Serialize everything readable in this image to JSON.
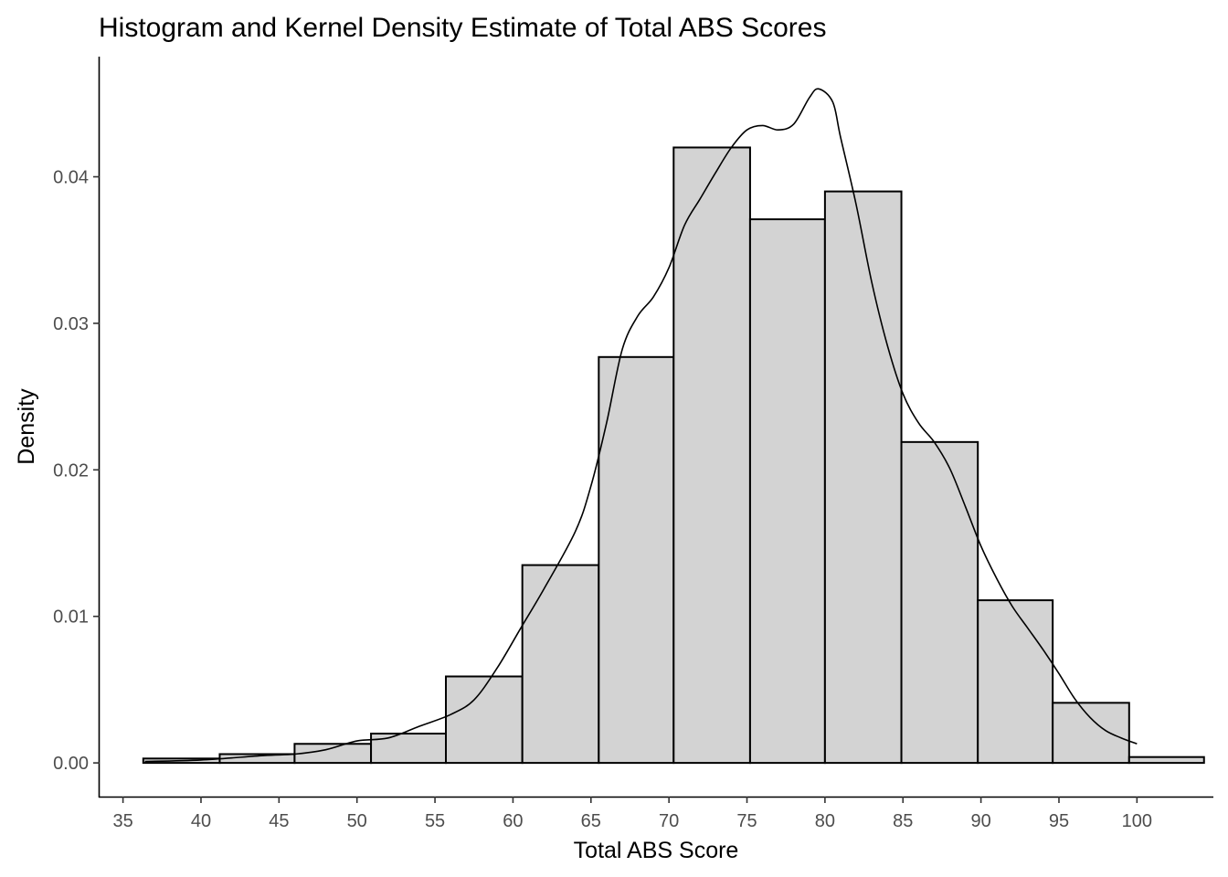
{
  "chart_data": {
    "type": "bar",
    "title": "Histogram and Kernel Density Estimate of Total ABS Scores",
    "xlabel": "Total ABS Score",
    "ylabel": "Density",
    "xlim": [
      33.5,
      104.9
    ],
    "ylim": [
      -0.0023,
      0.0482
    ],
    "x_ticks": [
      35,
      40,
      45,
      50,
      55,
      60,
      65,
      70,
      75,
      80,
      85,
      90,
      95,
      100
    ],
    "x_tick_labels": [
      "35",
      "40",
      "45",
      "50",
      "55",
      "60",
      "65",
      "70",
      "75",
      "80",
      "85",
      "90",
      "95",
      "100"
    ],
    "y_ticks": [
      0,
      0.01,
      0.02,
      0.03,
      0.04
    ],
    "y_tick_labels": [
      "0.00",
      "0.01",
      "0.02",
      "0.03",
      "0.04"
    ],
    "grid": false,
    "colors": {
      "bar_fill": "#d3d3d3",
      "bar_outline": "#000000",
      "density_line": "#000000"
    },
    "histogram": {
      "bins": [
        {
          "x0": 36.3,
          "x1": 41.2,
          "density": 0.0003
        },
        {
          "x0": 41.2,
          "x1": 46.0,
          "density": 0.0006
        },
        {
          "x0": 46.0,
          "x1": 50.9,
          "density": 0.0013
        },
        {
          "x0": 50.9,
          "x1": 55.7,
          "density": 0.002
        },
        {
          "x0": 55.7,
          "x1": 60.6,
          "density": 0.0059
        },
        {
          "x0": 60.6,
          "x1": 65.5,
          "density": 0.0135
        },
        {
          "x0": 65.5,
          "x1": 70.3,
          "density": 0.0277
        },
        {
          "x0": 70.3,
          "x1": 75.2,
          "density": 0.042
        },
        {
          "x0": 75.2,
          "x1": 80.0,
          "density": 0.0371
        },
        {
          "x0": 80.0,
          "x1": 84.9,
          "density": 0.039
        },
        {
          "x0": 84.9,
          "x1": 89.8,
          "density": 0.0219
        },
        {
          "x0": 89.8,
          "x1": 94.6,
          "density": 0.0111
        },
        {
          "x0": 94.6,
          "x1": 99.5,
          "density": 0.0041
        },
        {
          "x0": 99.5,
          "x1": 104.3,
          "density": 0.0004
        }
      ]
    },
    "density": {
      "x": [
        36.4,
        40,
        44,
        46,
        48,
        50,
        52,
        54,
        56,
        57.5,
        59,
        60.5,
        62,
        64,
        65,
        66,
        67,
        68,
        69,
        70,
        71,
        72,
        73,
        74,
        75,
        76,
        77,
        78,
        79,
        79.6,
        80.5,
        81,
        82,
        83,
        84,
        85,
        86,
        87,
        88,
        89,
        90,
        91,
        92,
        93,
        94,
        95,
        96,
        97,
        98,
        99,
        100
      ],
      "y": [
        0.0001,
        0.0002,
        0.0005,
        0.0006,
        0.0009,
        0.0015,
        0.0017,
        0.0025,
        0.0033,
        0.0043,
        0.0065,
        0.0092,
        0.0119,
        0.0158,
        0.0189,
        0.0232,
        0.0282,
        0.0305,
        0.0318,
        0.0338,
        0.0367,
        0.0385,
        0.0403,
        0.042,
        0.0432,
        0.0435,
        0.0432,
        0.0436,
        0.0454,
        0.046,
        0.0451,
        0.0427,
        0.0381,
        0.0328,
        0.0285,
        0.0252,
        0.0232,
        0.0219,
        0.0201,
        0.0175,
        0.0148,
        0.0126,
        0.0107,
        0.0092,
        0.0077,
        0.0061,
        0.0044,
        0.0031,
        0.0022,
        0.0017,
        0.0013
      ]
    }
  }
}
